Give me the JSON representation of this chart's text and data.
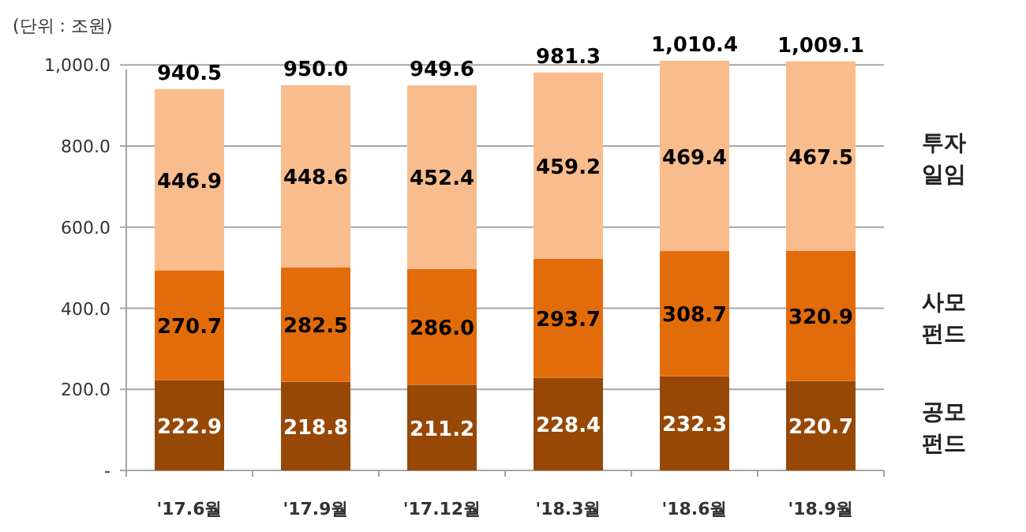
{
  "chart_data": {
    "type": "bar",
    "stacked": true,
    "ylabel": "(단위 : 조원)",
    "categories": [
      "'17.6월",
      "'17.9월",
      "'17.12월",
      "'18.3월",
      "'18.6월",
      "'18.9월"
    ],
    "series": [
      {
        "name": "공모펀드",
        "color": "#974806",
        "values": [
          222.9,
          218.8,
          211.2,
          228.4,
          232.3,
          220.7
        ],
        "value_labels": [
          "222.9",
          "218.8",
          "211.2",
          "228.4",
          "232.3",
          "220.7"
        ]
      },
      {
        "name": "사모펀드",
        "color": "#e36c0a",
        "values": [
          270.7,
          282.5,
          286.0,
          293.7,
          308.7,
          320.9
        ],
        "value_labels": [
          "270.7",
          "282.5",
          "286.0",
          "293.7",
          "308.7",
          "320.9"
        ]
      },
      {
        "name": "투자일임",
        "color": "#f9bc8c",
        "values": [
          446.9,
          448.6,
          452.4,
          459.2,
          469.4,
          467.5
        ],
        "value_labels": [
          "446.9",
          "448.6",
          "452.4",
          "459.2",
          "469.4",
          "467.5"
        ]
      }
    ],
    "ylim": [
      0,
      1020
    ],
    "yticks": [
      {
        "value": 0,
        "label": "-"
      },
      {
        "value": 200,
        "label": "200.0"
      },
      {
        "value": 400,
        "label": "400.0"
      },
      {
        "value": 600,
        "label": "600.0"
      },
      {
        "value": 800,
        "label": "800.0"
      },
      {
        "value": 1000,
        "label": "1,000.0"
      }
    ],
    "grid": "y",
    "totals": [
      "940.5",
      "950.0",
      "949.6",
      "981.3",
      "1,010.4",
      "1,009.1"
    ]
  }
}
